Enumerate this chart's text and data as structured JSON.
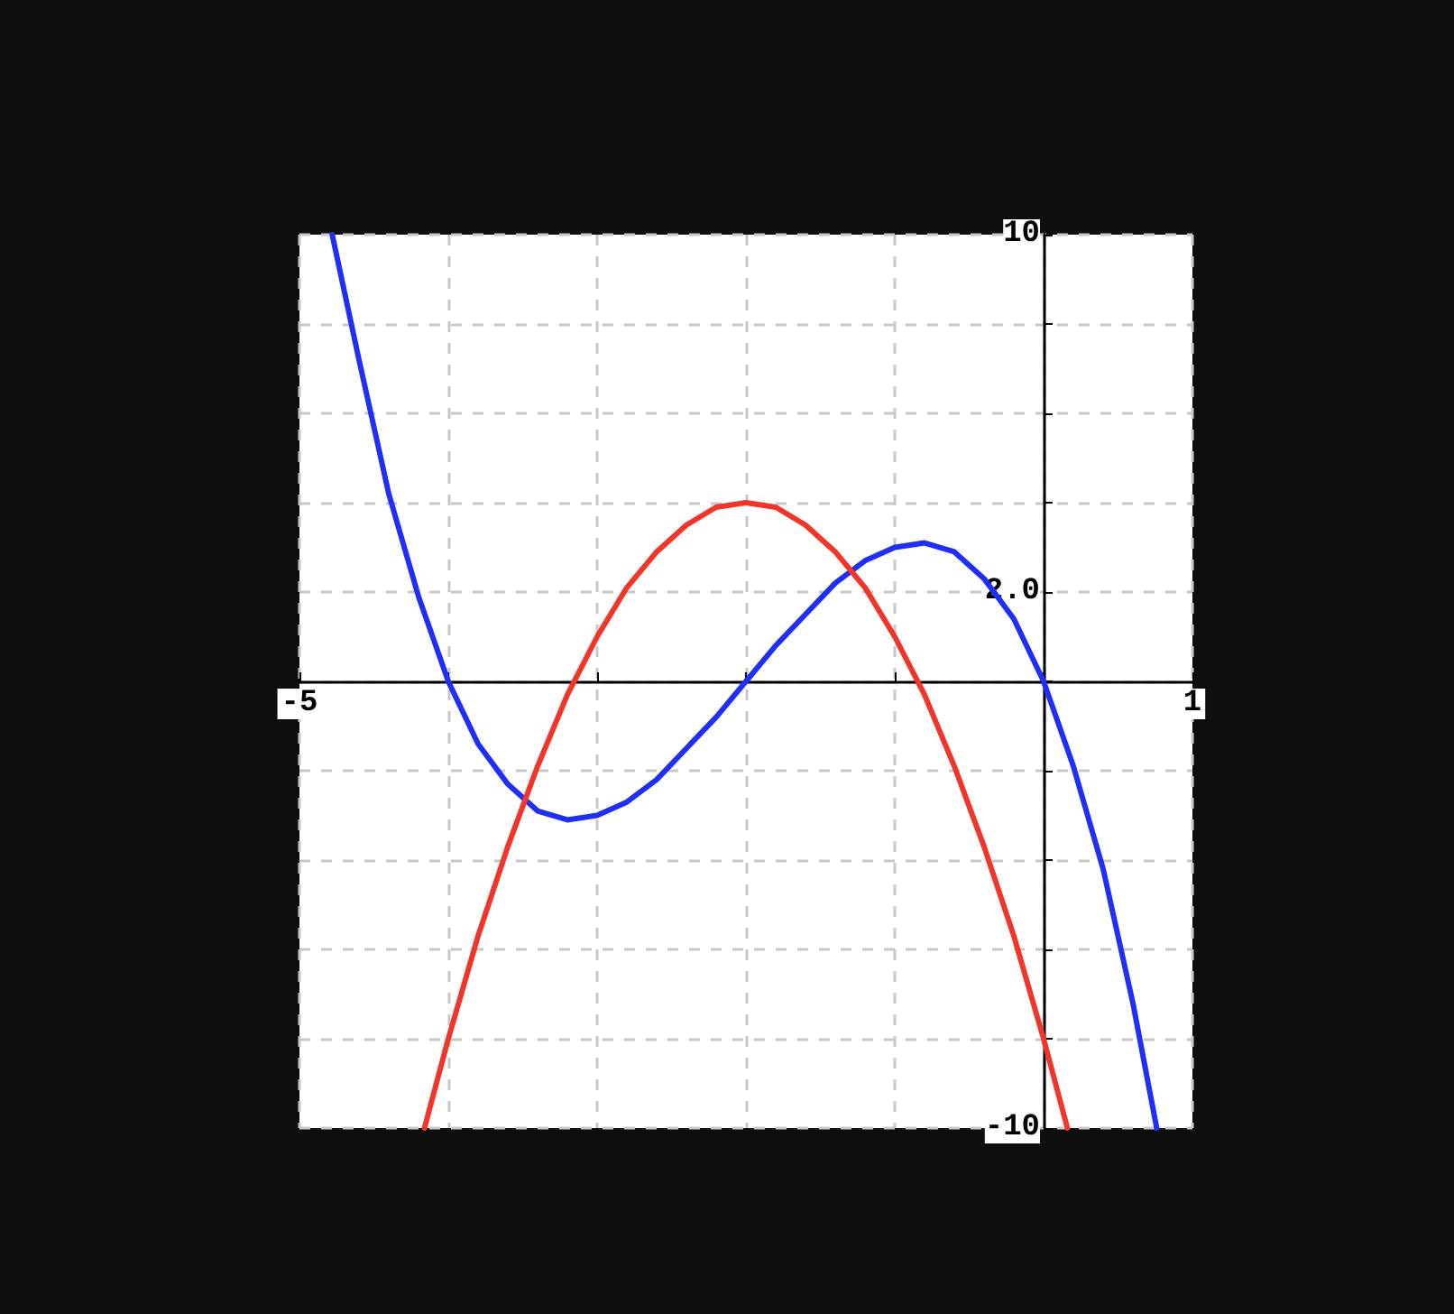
{
  "chart_data": {
    "type": "line",
    "series": [
      {
        "color": "#1f2ff5",
        "x": [
          -4.78,
          -4.6,
          -4.4,
          -4.2,
          -4.0,
          -3.8,
          -3.6,
          -3.4,
          -3.2,
          -3.0,
          -2.8,
          -2.6,
          -2.4,
          -2.2,
          -2.0,
          -1.8,
          -1.6,
          -1.4,
          -1.2,
          -1.0,
          -0.8,
          -0.6,
          -0.4,
          -0.2,
          0,
          0.2,
          0.4,
          0.6,
          0.76
        ],
        "values": [
          10,
          7.2,
          4.2,
          1.9,
          0,
          -1.4,
          -2.3,
          -2.9,
          -3.1,
          -3,
          -2.7,
          -2.2,
          -1.5,
          -0.8,
          0,
          0.8,
          1.5,
          2.2,
          2.7,
          3,
          3.1,
          2.9,
          2.3,
          1.4,
          0,
          -1.9,
          -4.2,
          -7.2,
          -10
        ]
      },
      {
        "color": "#f0352a",
        "x": [
          -4.16,
          -4.0,
          -3.8,
          -3.6,
          -3.4,
          -3.2,
          -3.0,
          -2.8,
          -2.6,
          -2.4,
          -2.2,
          -2.0,
          -1.8,
          -1.6,
          -1.4,
          -1.2,
          -1.0,
          -0.8,
          -0.6,
          -0.4,
          -0.2,
          0,
          0.16
        ],
        "values": [
          -10,
          -8,
          -5.7,
          -3.7,
          -1.9,
          -0.3,
          1,
          2.1,
          2.9,
          3.5,
          3.9,
          4,
          3.9,
          3.5,
          2.9,
          2.1,
          1,
          -0.3,
          -1.9,
          -3.7,
          -5.7,
          -8,
          -10
        ]
      }
    ],
    "xlim": [
      -5,
      1
    ],
    "ylim": [
      -10,
      10
    ],
    "xticks": [
      -5,
      {
        "value": -4,
        "label": null
      },
      {
        "value": -3,
        "label": null
      },
      {
        "value": -2,
        "label": null
      },
      {
        "value": -1,
        "label": null
      },
      {
        "value": 0,
        "label": null
      },
      1
    ],
    "yticks": [
      -10,
      {
        "value": -8,
        "label": null
      },
      {
        "value": -6,
        "label": null
      },
      {
        "value": -4,
        "label": null
      },
      {
        "value": -2,
        "label": null
      },
      {
        "value": 0,
        "label": null
      },
      {
        "value": 2,
        "label": "2.0"
      },
      {
        "value": 4,
        "label": null
      },
      {
        "value": 6,
        "label": null
      },
      {
        "value": 8,
        "label": null
      },
      10
    ],
    "grid": true,
    "marker": "none",
    "line_style": "solid"
  }
}
